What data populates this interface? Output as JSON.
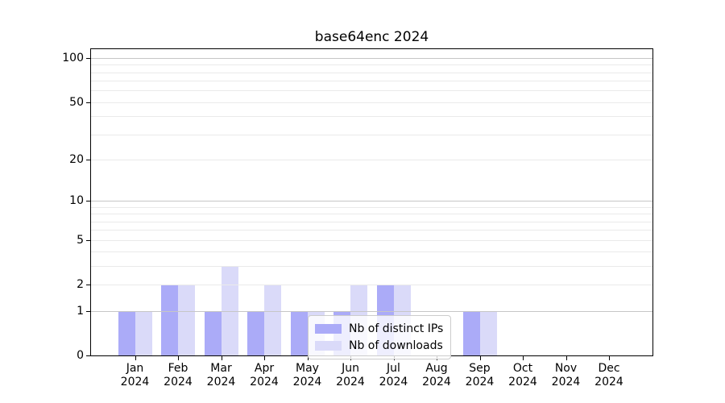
{
  "chart_data": {
    "type": "bar",
    "title": "base64enc 2024",
    "categories": [
      "Jan 2024",
      "Feb 2024",
      "Mar 2024",
      "Apr 2024",
      "May 2024",
      "Jun 2024",
      "Jul 2024",
      "Aug 2024",
      "Sep 2024",
      "Oct 2024",
      "Nov 2024",
      "Dec 2024"
    ],
    "series": [
      {
        "name": "Nb of distinct IPs",
        "color": "#ababf8",
        "values": [
          1,
          2,
          1,
          1,
          1,
          1,
          2,
          0,
          1,
          0,
          0,
          0
        ]
      },
      {
        "name": "Nb of downloads",
        "color": "#dadaf9",
        "values": [
          1,
          2,
          3,
          2,
          1,
          2,
          2,
          0,
          1,
          0,
          0,
          0
        ]
      }
    ],
    "yscale": "log1p",
    "yticks": [
      0,
      1,
      2,
      5,
      10,
      20,
      50,
      100
    ],
    "ylim": [
      0,
      115
    ],
    "grid": {
      "major_lines": [
        1,
        10,
        100
      ],
      "minor_lines": [
        2,
        3,
        4,
        5,
        6,
        7,
        8,
        9,
        20,
        30,
        40,
        50,
        60,
        70,
        80,
        90
      ],
      "major_color": "#c6c6c6",
      "minor_color": "#eaeaea"
    },
    "legend_position": "inside lower center",
    "axis_color": "#000000",
    "text_color": "#000000",
    "background": "#ffffff"
  }
}
